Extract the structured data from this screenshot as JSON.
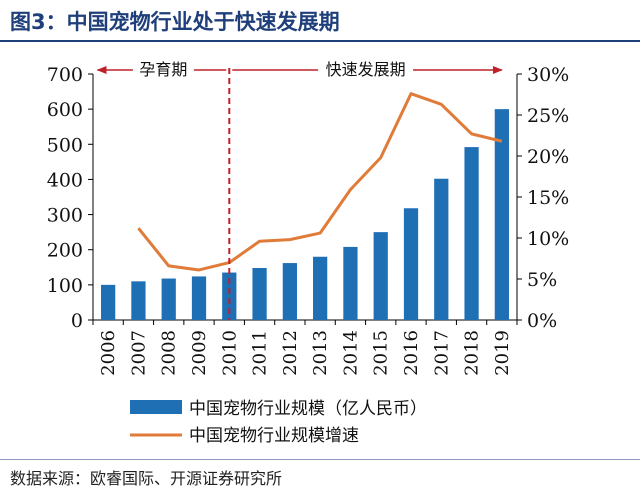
{
  "figure_title": "图3：中国宠物行业处于快速发展期",
  "source": "数据来源：欧睿国际、开源证券研究所",
  "chart_data": {
    "type": "bar",
    "categories": [
      "2006",
      "2007",
      "2008",
      "2009",
      "2010",
      "2011",
      "2012",
      "2013",
      "2014",
      "2015",
      "2016",
      "2017",
      "2018",
      "2019"
    ],
    "series": [
      {
        "name": "中国宠物行业规模（亿人民币）",
        "type": "bar",
        "axis": "left",
        "color": "#1f6fb5",
        "values": [
          100,
          110,
          118,
          124,
          135,
          148,
          162,
          180,
          208,
          250,
          318,
          402,
          492,
          600
        ]
      },
      {
        "name": "中国宠物行业规模增速",
        "type": "line",
        "axis": "right",
        "color": "#e07b39",
        "values": [
          null,
          11.2,
          6.6,
          6.1,
          7.0,
          9.6,
          9.8,
          10.6,
          15.9,
          19.8,
          27.6,
          26.3,
          22.7,
          21.8
        ]
      }
    ],
    "yleft": {
      "min": 0,
      "max": 700,
      "ticks": [
        0,
        100,
        200,
        300,
        400,
        500,
        600,
        700
      ]
    },
    "yright": {
      "min": 0,
      "max": 30,
      "ticks": [
        "0%",
        "5%",
        "10%",
        "15%",
        "20%",
        "25%",
        "30%"
      ]
    },
    "divider_after_category": "2010",
    "period_labels": [
      {
        "text": "孕育期",
        "from": "2006",
        "to": "2010"
      },
      {
        "text": "快速发展期",
        "from": "2010",
        "to": "2019"
      }
    ],
    "legend_position": "bottom",
    "grid": false
  }
}
